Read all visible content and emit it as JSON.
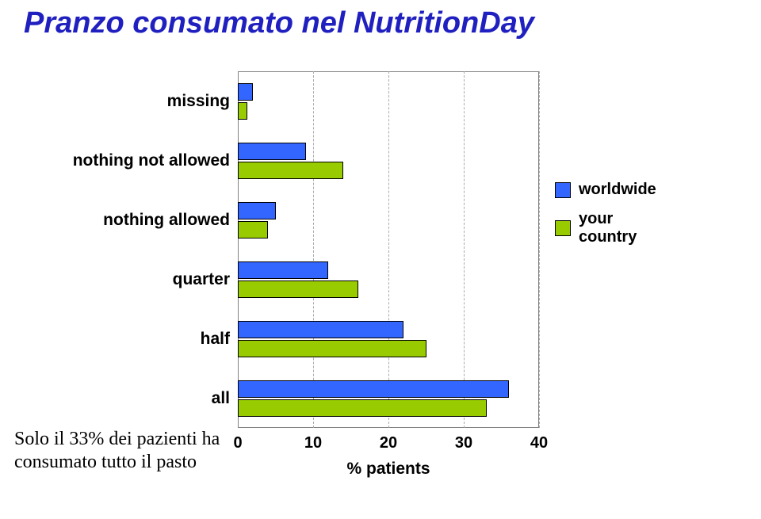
{
  "title": "Pranzo consumato nel NutritionDay",
  "chart": {
    "type": "bar",
    "orientation": "horizontal",
    "xaxis": {
      "min": 0,
      "max": 40,
      "ticks": [
        0,
        10,
        20,
        30,
        40
      ],
      "title": "% patients"
    },
    "series_colors": {
      "worldwide": "#3366ff",
      "your_country": "#99cc00"
    },
    "bar_border": "#000000",
    "grid_color": "#aaaaaa",
    "categories": [
      {
        "label": "missing",
        "worldwide": 2,
        "your_country": 1.3
      },
      {
        "label": "nothing not allowed",
        "worldwide": 9,
        "your_country": 14
      },
      {
        "label": "nothing allowed",
        "worldwide": 5,
        "your_country": 4
      },
      {
        "label": "quarter",
        "worldwide": 12,
        "your_country": 16
      },
      {
        "label": "half",
        "worldwide": 22,
        "your_country": 25
      },
      {
        "label": "all",
        "worldwide": 36,
        "your_country": 33
      }
    ],
    "legend": [
      {
        "label": "worldwide",
        "color": "#3366ff"
      },
      {
        "label": "your country",
        "color": "#99cc00"
      }
    ],
    "category_label_font": {
      "family": "Arial",
      "weight": "bold",
      "size_pt": 16
    },
    "tick_font": {
      "family": "Arial",
      "weight": "bold",
      "size_pt": 15
    },
    "plot_background": "#ffffff"
  },
  "note": "Solo il 33% dei pazienti ha consumato tutto il pasto",
  "title_style": {
    "color": "#2020c0",
    "font": "Comic Sans MS",
    "size_pt": 29,
    "italic": true,
    "bold": true
  }
}
